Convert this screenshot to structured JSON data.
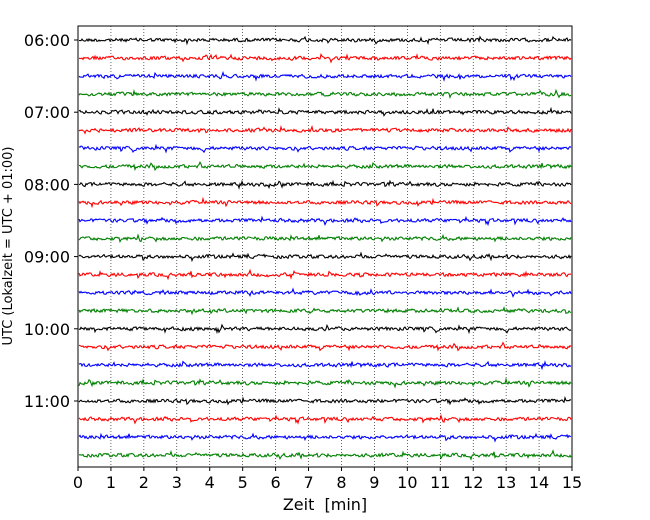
{
  "chart_data": {
    "type": "line",
    "title": "",
    "xlabel": "Zeit  [min]",
    "ylabel": "UTC (Lokalzeit = UTC + 01:00)",
    "xlim": [
      0,
      15
    ],
    "x_ticks": [
      "0",
      "1",
      "2",
      "3",
      "4",
      "5",
      "6",
      "7",
      "8",
      "9",
      "10",
      "11",
      "12",
      "13",
      "14",
      "15"
    ],
    "y_tick_labels": [
      "06:00",
      "07:00",
      "08:00",
      "09:00",
      "10:00",
      "11:00"
    ],
    "grid_x": true,
    "trace_colors": [
      "#000000",
      "#ff0000",
      "#0000ff",
      "#008000"
    ],
    "traces": [
      {
        "start": "06:00",
        "color": "#000000"
      },
      {
        "start": "06:15",
        "color": "#ff0000"
      },
      {
        "start": "06:30",
        "color": "#0000ff"
      },
      {
        "start": "06:45",
        "color": "#008000"
      },
      {
        "start": "07:00",
        "color": "#000000"
      },
      {
        "start": "07:15",
        "color": "#ff0000"
      },
      {
        "start": "07:30",
        "color": "#0000ff"
      },
      {
        "start": "07:45",
        "color": "#008000"
      },
      {
        "start": "08:00",
        "color": "#000000"
      },
      {
        "start": "08:15",
        "color": "#ff0000"
      },
      {
        "start": "08:30",
        "color": "#0000ff"
      },
      {
        "start": "08:45",
        "color": "#008000"
      },
      {
        "start": "09:00",
        "color": "#000000"
      },
      {
        "start": "09:15",
        "color": "#ff0000"
      },
      {
        "start": "09:30",
        "color": "#0000ff"
      },
      {
        "start": "09:45",
        "color": "#008000"
      },
      {
        "start": "10:00",
        "color": "#000000"
      },
      {
        "start": "10:15",
        "color": "#ff0000"
      },
      {
        "start": "10:30",
        "color": "#0000ff"
      },
      {
        "start": "10:45",
        "color": "#008000"
      },
      {
        "start": "11:00",
        "color": "#000000"
      },
      {
        "start": "11:15",
        "color": "#ff0000"
      },
      {
        "start": "11:30",
        "color": "#0000ff"
      },
      {
        "start": "11:45",
        "color": "#008000"
      }
    ]
  }
}
